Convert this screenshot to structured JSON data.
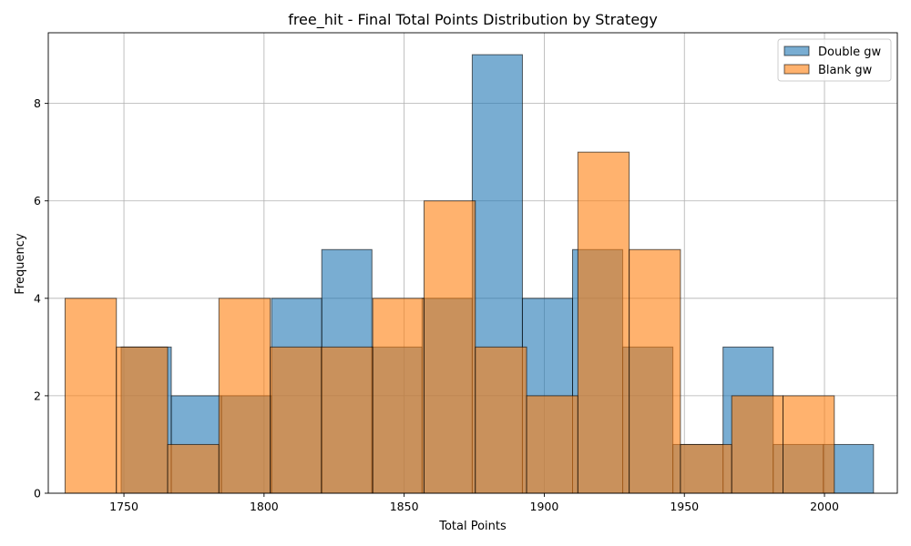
{
  "chart_data": {
    "type": "histogram",
    "title": "free_hit - Final Total Points Distribution by Strategy",
    "xlabel": "Total Points",
    "ylabel": "Frequency",
    "xlim": [
      1723,
      2026
    ],
    "ylim": [
      0,
      9.45
    ],
    "x_ticks": [
      1750,
      1800,
      1850,
      1900,
      1950,
      2000
    ],
    "y_ticks": [
      0,
      2,
      4,
      6,
      8
    ],
    "grid": true,
    "legend_position": "top-right",
    "series": [
      {
        "name": "Double gw",
        "color": "#1f77b4",
        "bins": [
          {
            "x0": 1749.0,
            "x1": 1766.9,
            "count": 3
          },
          {
            "x0": 1766.9,
            "x1": 1784.8,
            "count": 2
          },
          {
            "x0": 1784.8,
            "x1": 1802.7,
            "count": 2
          },
          {
            "x0": 1802.7,
            "x1": 1820.6,
            "count": 4
          },
          {
            "x0": 1820.6,
            "x1": 1838.5,
            "count": 5
          },
          {
            "x0": 1838.5,
            "x1": 1856.4,
            "count": 3
          },
          {
            "x0": 1856.4,
            "x1": 1874.3,
            "count": 4
          },
          {
            "x0": 1874.3,
            "x1": 1892.2,
            "count": 9
          },
          {
            "x0": 1892.2,
            "x1": 1910.1,
            "count": 4
          },
          {
            "x0": 1910.1,
            "x1": 1928.0,
            "count": 5
          },
          {
            "x0": 1928.0,
            "x1": 1945.9,
            "count": 3
          },
          {
            "x0": 1945.9,
            "x1": 1963.8,
            "count": 1
          },
          {
            "x0": 1963.8,
            "x1": 1981.7,
            "count": 3
          },
          {
            "x0": 1981.7,
            "x1": 1999.6,
            "count": 1
          },
          {
            "x0": 1999.6,
            "x1": 2017.5,
            "count": 1
          }
        ]
      },
      {
        "name": "Blank gw",
        "color": "#ff7f0e",
        "bins": [
          {
            "x0": 1729.0,
            "x1": 1747.3,
            "count": 4
          },
          {
            "x0": 1747.3,
            "x1": 1765.6,
            "count": 3
          },
          {
            "x0": 1765.6,
            "x1": 1783.9,
            "count": 1
          },
          {
            "x0": 1783.9,
            "x1": 1802.2,
            "count": 4
          },
          {
            "x0": 1802.2,
            "x1": 1820.5,
            "count": 3
          },
          {
            "x0": 1820.5,
            "x1": 1838.8,
            "count": 3
          },
          {
            "x0": 1838.8,
            "x1": 1857.1,
            "count": 4
          },
          {
            "x0": 1857.1,
            "x1": 1875.4,
            "count": 6
          },
          {
            "x0": 1875.4,
            "x1": 1893.7,
            "count": 3
          },
          {
            "x0": 1893.7,
            "x1": 1912.0,
            "count": 2
          },
          {
            "x0": 1912.0,
            "x1": 1930.3,
            "count": 7
          },
          {
            "x0": 1930.3,
            "x1": 1948.6,
            "count": 5
          },
          {
            "x0": 1948.6,
            "x1": 1966.9,
            "count": 1
          },
          {
            "x0": 1966.9,
            "x1": 1985.2,
            "count": 2
          },
          {
            "x0": 1985.2,
            "x1": 2003.5,
            "count": 2
          }
        ]
      }
    ]
  }
}
